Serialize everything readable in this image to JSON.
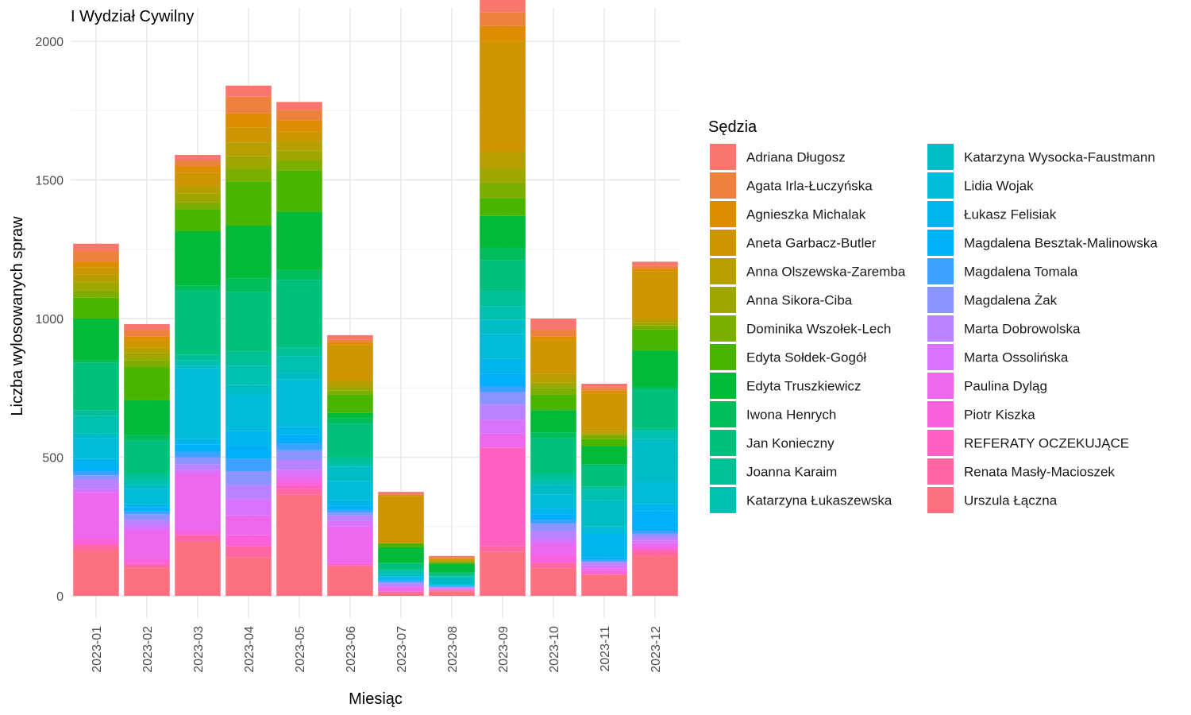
{
  "chart_data": {
    "type": "bar",
    "stacked": true,
    "title": "I Wydział Cywilny",
    "xlabel": "Miesiąc",
    "ylabel": "Liczba wylosowanych spraw",
    "ylim": [
      -80,
      2120
    ],
    "yticks": [
      0,
      500,
      1000,
      1500,
      2000
    ],
    "grid": true,
    "legend_title": "Sędzia",
    "legend_position": "right",
    "categories": [
      "2023-01",
      "2023-02",
      "2023-03",
      "2023-04",
      "2023-05",
      "2023-06",
      "2023-07",
      "2023-08",
      "2023-09",
      "2023-10",
      "2023-11",
      "2023-12"
    ],
    "series": [
      {
        "name": "Adriana Długosz",
        "color": "#F8766D",
        "values": [
          25,
          20,
          20,
          40,
          28,
          15,
          10,
          4,
          50,
          40,
          15,
          15
        ]
      },
      {
        "name": "Agata Irla-Łuczyńska",
        "color": "#ED813E",
        "values": [
          40,
          25,
          20,
          60,
          38,
          10,
          0,
          4,
          50,
          25,
          10,
          10
        ]
      },
      {
        "name": "Agnieszka Michalak",
        "color": "#DE8C00",
        "values": [
          20,
          15,
          25,
          50,
          40,
          10,
          5,
          3,
          55,
          15,
          10,
          10
        ]
      },
      {
        "name": "Aneta Garbacz-Butler",
        "color": "#CD9600",
        "values": [
          25,
          25,
          45,
          55,
          35,
          130,
          170,
          4,
          400,
          120,
          135,
          170
        ]
      },
      {
        "name": "Anna Olszewska-Zaremba",
        "color": "#B79F00",
        "values": [
          30,
          20,
          30,
          50,
          35,
          20,
          0,
          4,
          60,
          30,
          10,
          15
        ]
      },
      {
        "name": "Anna Sikora-Ciba",
        "color": "#9DA700",
        "values": [
          30,
          25,
          30,
          45,
          35,
          15,
          0,
          3,
          50,
          20,
          5,
          10
        ]
      },
      {
        "name": "Dominika Wszołek-Lech",
        "color": "#7CAE00",
        "values": [
          25,
          25,
          25,
          45,
          35,
          15,
          0,
          3,
          55,
          25,
          15,
          15
        ]
      },
      {
        "name": "Edyta Sołdek-Gogół",
        "color": "#49B500",
        "values": [
          75,
          120,
          80,
          160,
          150,
          65,
          15,
          3,
          65,
          55,
          25,
          75
        ]
      },
      {
        "name": "Edyta Truszkiewicz",
        "color": "#00BA38",
        "values": [
          150,
          125,
          195,
          190,
          210,
          20,
          55,
          30,
          115,
          80,
          65,
          130
        ]
      },
      {
        "name": "Iwona Henrych",
        "color": "#00BD5C",
        "values": [
          10,
          20,
          20,
          50,
          35,
          20,
          5,
          3,
          45,
          20,
          5,
          10
        ]
      },
      {
        "name": "Jan Konieczny",
        "color": "#00C07B",
        "values": [
          170,
          120,
          230,
          215,
          245,
          120,
          20,
          10,
          110,
          130,
          75,
          140
        ]
      },
      {
        "name": "Joanna Karaim",
        "color": "#00C097",
        "values": [
          20,
          20,
          20,
          50,
          30,
          20,
          5,
          3,
          55,
          20,
          10,
          10
        ]
      },
      {
        "name": "Katarzyna Łukaszewska",
        "color": "#00C0AF",
        "values": [
          65,
          20,
          20,
          70,
          60,
          15,
          10,
          3,
          50,
          20,
          40,
          30
        ]
      },
      {
        "name": "Katarzyna Wysocka-Faustmann",
        "color": "#00BCC5",
        "values": [
          15,
          15,
          10,
          35,
          25,
          50,
          10,
          25,
          50,
          35,
          95,
          155
        ]
      },
      {
        "name": "Lidia Wojak",
        "color": "#00BCD8",
        "values": [
          75,
          55,
          255,
          130,
          170,
          70,
          5,
          3,
          90,
          50,
          25,
          80
        ]
      },
      {
        "name": "Łukasz Felisiak",
        "color": "#00B5EB",
        "values": [
          25,
          10,
          20,
          55,
          30,
          20,
          5,
          2,
          55,
          20,
          85,
          25
        ]
      },
      {
        "name": "Magdalena Besztak-Malinowska",
        "color": "#00AFF8",
        "values": [
          20,
          15,
          25,
          45,
          30,
          15,
          5,
          2,
          45,
          20,
          10,
          70
        ]
      },
      {
        "name": "Magdalena Tomala",
        "color": "#3CA1FF",
        "values": [
          15,
          10,
          20,
          45,
          25,
          10,
          5,
          2,
          20,
          15,
          5,
          10
        ]
      },
      {
        "name": "Magdalena Żak",
        "color": "#8C94FF",
        "values": [
          15,
          20,
          25,
          50,
          35,
          10,
          5,
          2,
          45,
          25,
          5,
          10
        ]
      },
      {
        "name": "Marta Dobrowolska",
        "color": "#B983FF",
        "values": [
          35,
          20,
          20,
          50,
          35,
          20,
          10,
          3,
          55,
          30,
          10,
          15
        ]
      },
      {
        "name": "Marta Ossolińska",
        "color": "#D973FC",
        "values": [
          15,
          20,
          15,
          60,
          25,
          20,
          5,
          3,
          50,
          20,
          10,
          10
        ]
      },
      {
        "name": "Paulina Dyląg",
        "color": "#ED68ED",
        "values": [
          165,
          100,
          205,
          70,
          20,
          130,
          10,
          3,
          50,
          40,
          10,
          15
        ]
      },
      {
        "name": "Piotr Kiszka",
        "color": "#F962DC",
        "values": [
          20,
          20,
          15,
          40,
          10,
          10,
          5,
          2,
          0,
          25,
          10,
          10
        ]
      },
      {
        "name": "REFERATY OCZEKUJĄCE",
        "color": "#FF61C3",
        "values": [
          0,
          0,
          0,
          0,
          15,
          0,
          0,
          0,
          355,
          0,
          0,
          0
        ]
      },
      {
        "name": "Renata Masły-Macioszek",
        "color": "#FF67A4",
        "values": [
          20,
          15,
          25,
          40,
          20,
          5,
          5,
          3,
          20,
          20,
          5,
          20
        ]
      },
      {
        "name": "Urszula Łączna",
        "color": "#FC717F",
        "values": [
          165,
          100,
          195,
          140,
          365,
          105,
          10,
          17,
          160,
          100,
          75,
          145
        ]
      }
    ]
  }
}
